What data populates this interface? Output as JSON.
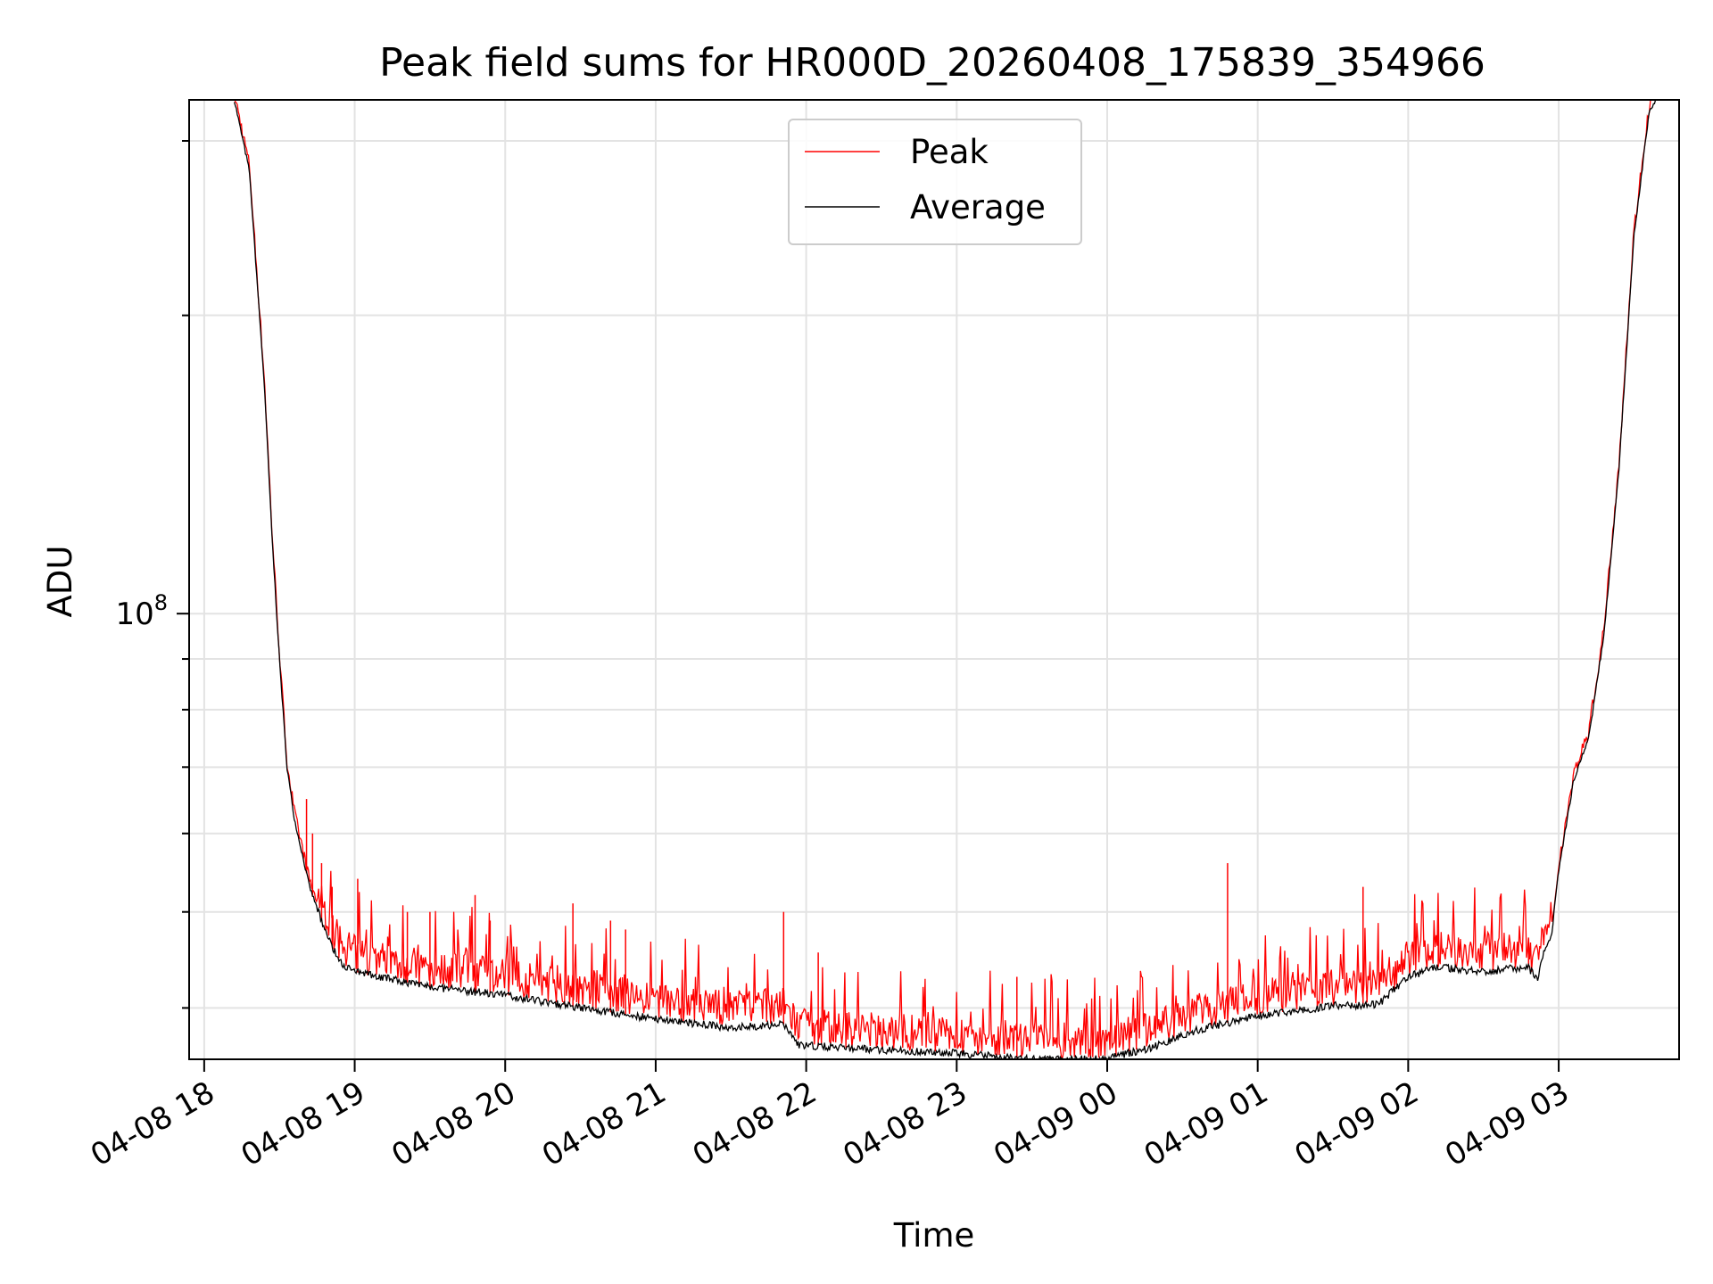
{
  "chart_data": {
    "type": "line",
    "title": "Peak field sums for HR000D_20260408_175839_354966",
    "xlabel": "Time",
    "ylabel": "ADU",
    "yscale": "log",
    "grid": true,
    "legend_location": "upper-center",
    "x_unit": "hours since 04-08 18:00",
    "xlim": [
      -0.1,
      9.8
    ],
    "ylim": [
      35500000.0,
      330000000.0
    ],
    "x_tick_labels": [
      "04-08 18",
      "04-08 19",
      "04-08 20",
      "04-08 21",
      "04-08 22",
      "04-08 23",
      "04-09 00",
      "04-09 01",
      "04-09 02",
      "04-09 03"
    ],
    "x_tick_values": [
      0,
      1,
      2,
      3,
      4,
      5,
      6,
      7,
      8,
      9
    ],
    "y_tick_labels": [
      {
        "base": "10",
        "exponent": "8",
        "value": 100000000
      }
    ],
    "y_minor_ticks": [
      40000000.0,
      50000000.0,
      60000000.0,
      70000000.0,
      80000000.0,
      90000000.0,
      200000000.0,
      300000000.0
    ],
    "series": [
      {
        "name": "Peak",
        "color": "#ff0000",
        "note": "average baseline plus frequent noise spikes; largest spikes listed",
        "spikes": [
          [
            0.68,
            65000000.0
          ],
          [
            0.72,
            60000000.0
          ],
          [
            0.78,
            56000000.0
          ],
          [
            0.85,
            53000000.0
          ],
          [
            1.02,
            54000000.0
          ],
          [
            1.35,
            50000000.0
          ],
          [
            1.5,
            50000000.0
          ],
          [
            1.8,
            52000000.0
          ],
          [
            1.9,
            49000000.0
          ],
          [
            2.45,
            51000000.0
          ],
          [
            2.7,
            49000000.0
          ],
          [
            2.8,
            48000000.0
          ],
          [
            3.85,
            50000000.0
          ],
          [
            4.08,
            45500000.0
          ],
          [
            5.4,
            43000000.0
          ],
          [
            6.8,
            56000000.0
          ],
          [
            7.7,
            53000000.0
          ],
          [
            8.2,
            48000000.0
          ],
          [
            8.8,
            47000000.0
          ]
        ]
      },
      {
        "name": "Average",
        "color": "#000000",
        "x": [
          0.2,
          0.3,
          0.4,
          0.45,
          0.5,
          0.55,
          0.6,
          0.7,
          0.8,
          0.9,
          1.0,
          1.5,
          2.0,
          2.5,
          3.0,
          3.5,
          3.85,
          3.95,
          4.5,
          5.0,
          5.5,
          5.95,
          6.0,
          6.3,
          6.6,
          7.0,
          7.5,
          7.8,
          7.85,
          8.0,
          8.2,
          8.5,
          8.8,
          8.86,
          8.9,
          8.95,
          9.0,
          9.1,
          9.2,
          9.3,
          9.4,
          9.5,
          9.6,
          9.65
        ],
        "values": [
          330000000.0,
          280000000.0,
          170000000.0,
          120000000.0,
          90000000.0,
          70000000.0,
          62000000.0,
          53000000.0,
          48000000.0,
          44500000.0,
          43500000.0,
          42000000.0,
          41200000.0,
          40000000.0,
          39000000.0,
          38200000.0,
          38500000.0,
          36700000.0,
          36300000.0,
          36000000.0,
          35500000.0,
          35500000.0,
          35600000.0,
          36500000.0,
          38000000.0,
          39300000.0,
          40200000.0,
          40300000.0,
          41000000.0,
          43000000.0,
          44000000.0,
          43500000.0,
          44000000.0,
          42500000.0,
          45500000.0,
          47000000.0,
          55000000.0,
          68000000.0,
          75000000.0,
          95000000.0,
          140000000.0,
          240000000.0,
          320000000.0,
          330000000.0
        ]
      }
    ]
  }
}
